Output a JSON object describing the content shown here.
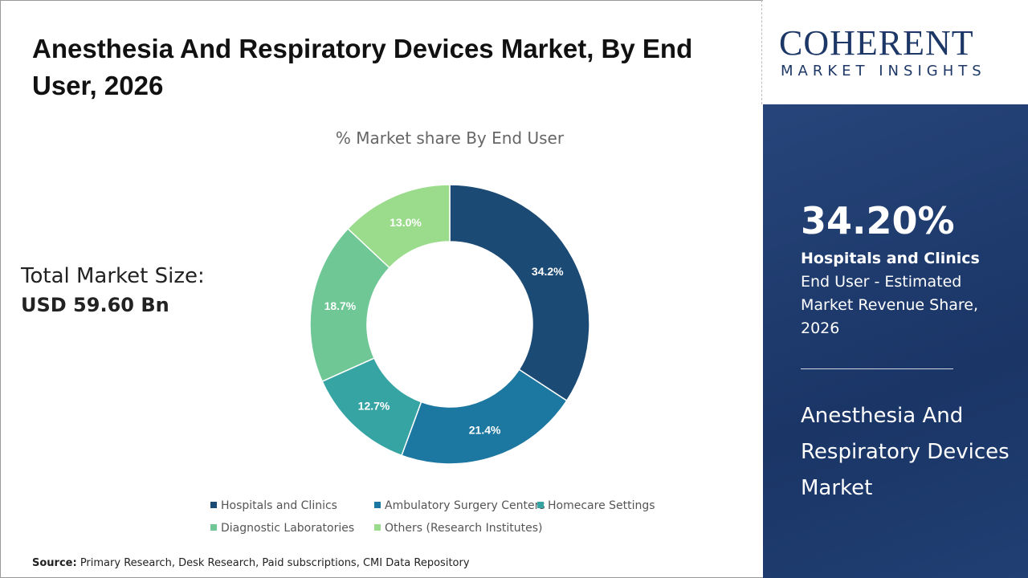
{
  "title": "Anesthesia And Respiratory Devices Market, By End User, 2026",
  "market_size": {
    "label": "Total Market Size:",
    "value": "USD 59.60 Bn"
  },
  "source": {
    "label": "Source:",
    "text": " Primary Research, Desk Research, Paid subscriptions, CMI Data Repository"
  },
  "logo": {
    "line1": "COHERENT",
    "line2": "MARKET INSIGHTS"
  },
  "panel": {
    "percent": "34.20%",
    "highlight": "Hospitals and Clinics",
    "desc": " End User - Estimated Market Revenue Share, 2026",
    "market_name": "Anesthesia And Respiratory Devices Market"
  },
  "chart_data": {
    "type": "pie",
    "donut": true,
    "title": "% Market share By End User",
    "categories": [
      "Hospitals and Clinics",
      "Ambulatory Surgery Centers",
      "Homecare Settings",
      "Diagnostic Laboratories",
      "Others (Research Institutes)"
    ],
    "values": [
      34.2,
      21.4,
      12.7,
      18.7,
      13.0
    ],
    "labels": [
      "34.2%",
      "21.4%",
      "12.7%",
      "18.7%",
      "13.0%"
    ],
    "colors": [
      "#1b4a74",
      "#1c77a1",
      "#37a4a4",
      "#6ec795",
      "#9adc8b"
    ],
    "legend": "bottom"
  }
}
